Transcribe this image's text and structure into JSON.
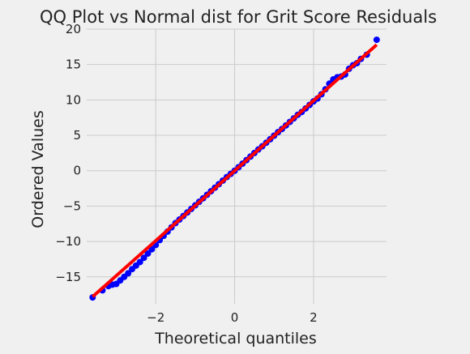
{
  "colors": {
    "background": "#f0f0f0",
    "grid": "#cbcbcb",
    "points": "#0000ff",
    "reference_line": "#ff0000",
    "text": "#222222"
  },
  "chart_data": {
    "type": "scatter",
    "title": "QQ Plot vs Normal dist for Grit Score Residuals",
    "xlabel": "Theoretical quantiles",
    "ylabel": "Ordered Values",
    "xlim": [
      -3.75,
      3.85
    ],
    "ylim": [
      -18.8,
      20
    ],
    "x_ticks": [
      -2,
      0,
      2
    ],
    "x_tick_labels": [
      "−2",
      "0",
      "2"
    ],
    "y_ticks": [
      -15,
      -10,
      -5,
      0,
      5,
      10,
      15,
      20
    ],
    "y_tick_labels": [
      "−15",
      "−10",
      "−5",
      "0",
      "5",
      "10",
      "15",
      "20"
    ],
    "grid": true,
    "legend": "none",
    "reference_line": {
      "name": "",
      "slope": 4.95,
      "intercept": 0.0,
      "x": [
        -3.6,
        3.6
      ],
      "y": [
        -17.8,
        17.8
      ]
    },
    "series": [
      {
        "name": "",
        "x": [
          -3.6,
          -3.35,
          -3.2,
          -3.1,
          -3.0,
          -2.9,
          -2.8,
          -2.7,
          -2.6,
          -2.5,
          -2.4,
          -2.3,
          -2.2,
          -2.1,
          -2.0,
          -1.9,
          -1.8,
          -1.7,
          -1.6,
          -1.5,
          -1.4,
          -1.3,
          -1.2,
          -1.1,
          -1.0,
          -0.9,
          -0.8,
          -0.7,
          -0.6,
          -0.5,
          -0.4,
          -0.3,
          -0.2,
          -0.1,
          0.0,
          0.1,
          0.2,
          0.3,
          0.4,
          0.5,
          0.6,
          0.7,
          0.8,
          0.9,
          1.0,
          1.1,
          1.2,
          1.3,
          1.4,
          1.5,
          1.6,
          1.7,
          1.8,
          1.9,
          2.0,
          2.1,
          2.2,
          2.3,
          2.4,
          2.5,
          2.6,
          2.7,
          2.8,
          2.9,
          3.0,
          3.1,
          3.2,
          3.35,
          3.6
        ],
        "y": [
          -17.9,
          -16.9,
          -16.3,
          -16.1,
          -16.0,
          -15.5,
          -15.0,
          -14.5,
          -13.9,
          -13.4,
          -12.9,
          -12.3,
          -11.7,
          -11.1,
          -10.5,
          -9.8,
          -9.2,
          -8.6,
          -8.0,
          -7.4,
          -6.9,
          -6.4,
          -5.9,
          -5.4,
          -4.9,
          -4.4,
          -3.9,
          -3.4,
          -2.9,
          -2.4,
          -1.9,
          -1.4,
          -0.9,
          -0.45,
          0.0,
          0.5,
          1.0,
          1.5,
          2.0,
          2.5,
          3.0,
          3.45,
          3.95,
          4.45,
          4.95,
          5.45,
          5.9,
          6.4,
          6.9,
          7.4,
          7.9,
          8.3,
          8.8,
          9.3,
          9.8,
          10.2,
          10.8,
          11.5,
          12.3,
          12.9,
          13.2,
          13.3,
          13.6,
          14.4,
          14.9,
          15.2,
          15.8,
          16.4,
          18.5
        ]
      }
    ]
  }
}
